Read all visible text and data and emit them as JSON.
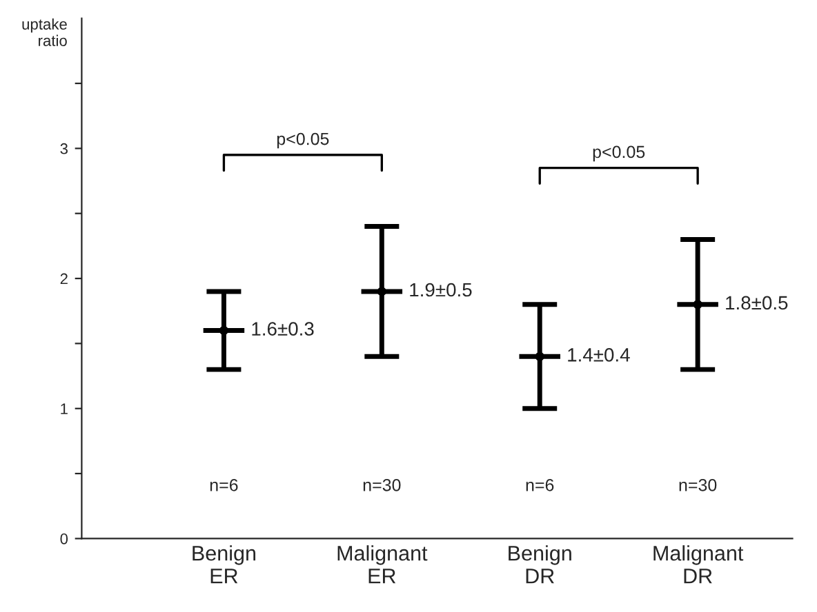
{
  "chart_data": {
    "type": "scatter",
    "ylabel": "uptake\nratio",
    "categories": [
      "Benign\nER",
      "Malignant\nER",
      "Benign\nDR",
      "Malignant\nDR"
    ],
    "values": [
      1.6,
      1.9,
      1.4,
      1.8
    ],
    "errors": [
      0.3,
      0.5,
      0.4,
      0.5
    ],
    "value_labels": [
      "1.6±0.3",
      "1.9±0.5",
      "1.4±0.4",
      "1.8±0.5"
    ],
    "color": "#000000",
    "ylim": [
      0,
      4
    ],
    "yticks": [
      0,
      {
        "value": 0.5,
        "label": null
      },
      1,
      {
        "value": 1.5,
        "label": null
      },
      2,
      {
        "value": 2.5,
        "label": null
      },
      3,
      {
        "value": 3.5,
        "label": null
      }
    ],
    "annotations": [
      "p<0.05",
      "p<0.05",
      "n=6",
      "n=30",
      "n=6",
      "n=30"
    ],
    "grid": false,
    "legend": false
  }
}
